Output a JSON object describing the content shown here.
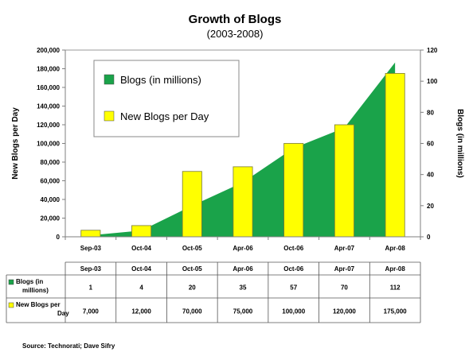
{
  "chart_data": {
    "type": "bar",
    "title": "Growth of Blogs",
    "subtitle": "(2003-2008)",
    "categories": [
      "Sep-03",
      "Oct-04",
      "Oct-05",
      "Apr-06",
      "Oct-06",
      "Apr-07",
      "Apr-08"
    ],
    "series": [
      {
        "name": "Blogs (in millions)",
        "type": "area",
        "axis": "right",
        "color": "#1aa34a",
        "values": [
          1,
          4,
          20,
          35,
          57,
          70,
          112
        ]
      },
      {
        "name": "New Blogs per Day",
        "type": "bar",
        "axis": "left",
        "color": "#ffff00",
        "values": [
          7000,
          12000,
          70000,
          75000,
          100000,
          120000,
          175000
        ]
      }
    ],
    "ylabel_left": "New Blogs per Day",
    "ylabel_right": "Blogs (in millions)",
    "ylim_left": [
      0,
      200000
    ],
    "ylim_right": [
      0,
      120
    ],
    "yticks_left": [
      "0",
      "20,000",
      "40,000",
      "60,000",
      "80,000",
      "100,000",
      "120,000",
      "140,000",
      "160,000",
      "180,000",
      "200,000"
    ],
    "yticks_right": [
      "0",
      "20",
      "40",
      "60",
      "80",
      "100",
      "120"
    ],
    "legend_position": "top-left",
    "grid": false,
    "data_table": {
      "headers": [
        "Sep-03",
        "Oct-04",
        "Oct-05",
        "Apr-06",
        "Oct-06",
        "Apr-07",
        "Apr-08"
      ],
      "rows": [
        {
          "label": "Blogs (in millions)",
          "label_lines": [
            "Blogs (in",
            "millions)"
          ],
          "cells": [
            "1",
            "4",
            "20",
            "35",
            "57",
            "70",
            "112"
          ]
        },
        {
          "label": "New Blogs per Day",
          "label_lines": [
            "New Blogs per",
            "Day"
          ],
          "cells": [
            "7,000",
            "12,000",
            "70,000",
            "75,000",
            "100,000",
            "120,000",
            "175,000"
          ]
        }
      ]
    },
    "source": "Source: Technorati; Dave Sifry"
  }
}
